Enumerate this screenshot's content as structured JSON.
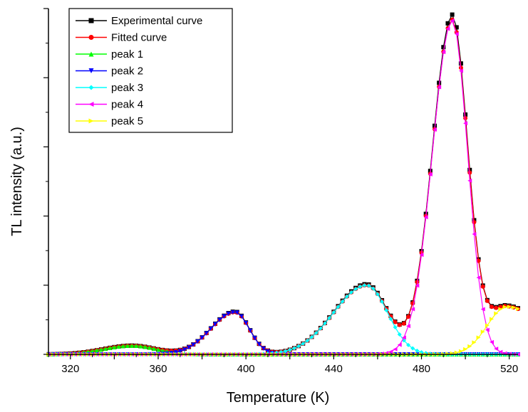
{
  "chart_data": {
    "type": "line",
    "xlabel": "Temperature (K)",
    "ylabel": "TL intensity (a.u.)",
    "xlim": [
      310,
      524
    ],
    "ylim": [
      0,
      10
    ],
    "x_ticks": [
      320,
      360,
      400,
      440,
      480,
      520
    ],
    "x_tick_labels": [
      "320",
      "360",
      "400",
      "440",
      "480",
      "520"
    ],
    "legend_position": "top-left",
    "x_step": 2,
    "peaks": [
      {
        "name": "peak 1",
        "center": 348,
        "amplitude": 0.25,
        "sigma_left": 13,
        "sigma_right": 11
      },
      {
        "name": "peak 2",
        "center": 395,
        "amplitude": 1.22,
        "sigma_left": 11,
        "sigma_right": 6.5
      },
      {
        "name": "peak 3",
        "center": 455,
        "amplitude": 2.0,
        "sigma_left": 15,
        "sigma_right": 9.5
      },
      {
        "name": "peak 4",
        "center": 494,
        "amplitude": 9.65,
        "sigma_left": 9,
        "sigma_right": 7
      },
      {
        "name": "peak 5",
        "center": 519,
        "amplitude": 1.38,
        "sigma_left": 9,
        "sigma_right": 16
      }
    ],
    "series": [
      {
        "name": "Experimental curve",
        "color": "#000000",
        "marker": "square",
        "kind": "experimental"
      },
      {
        "name": "Fitted curve",
        "color": "#ff0000",
        "marker": "circle",
        "kind": "sum"
      },
      {
        "name": "peak 1",
        "color": "#00ff00",
        "marker": "triangle-up",
        "kind": "peak",
        "peak_index": 0
      },
      {
        "name": "peak 2",
        "color": "#0000ff",
        "marker": "triangle-down",
        "kind": "peak",
        "peak_index": 1
      },
      {
        "name": "peak 3",
        "color": "#00ffff",
        "marker": "diamond",
        "kind": "peak",
        "peak_index": 2
      },
      {
        "name": "peak 4",
        "color": "#ff00ff",
        "marker": "triangle-left",
        "kind": "peak",
        "peak_index": 3
      },
      {
        "name": "peak 5",
        "color": "#ffff00",
        "marker": "triangle-right",
        "kind": "peak",
        "peak_index": 4
      }
    ]
  }
}
